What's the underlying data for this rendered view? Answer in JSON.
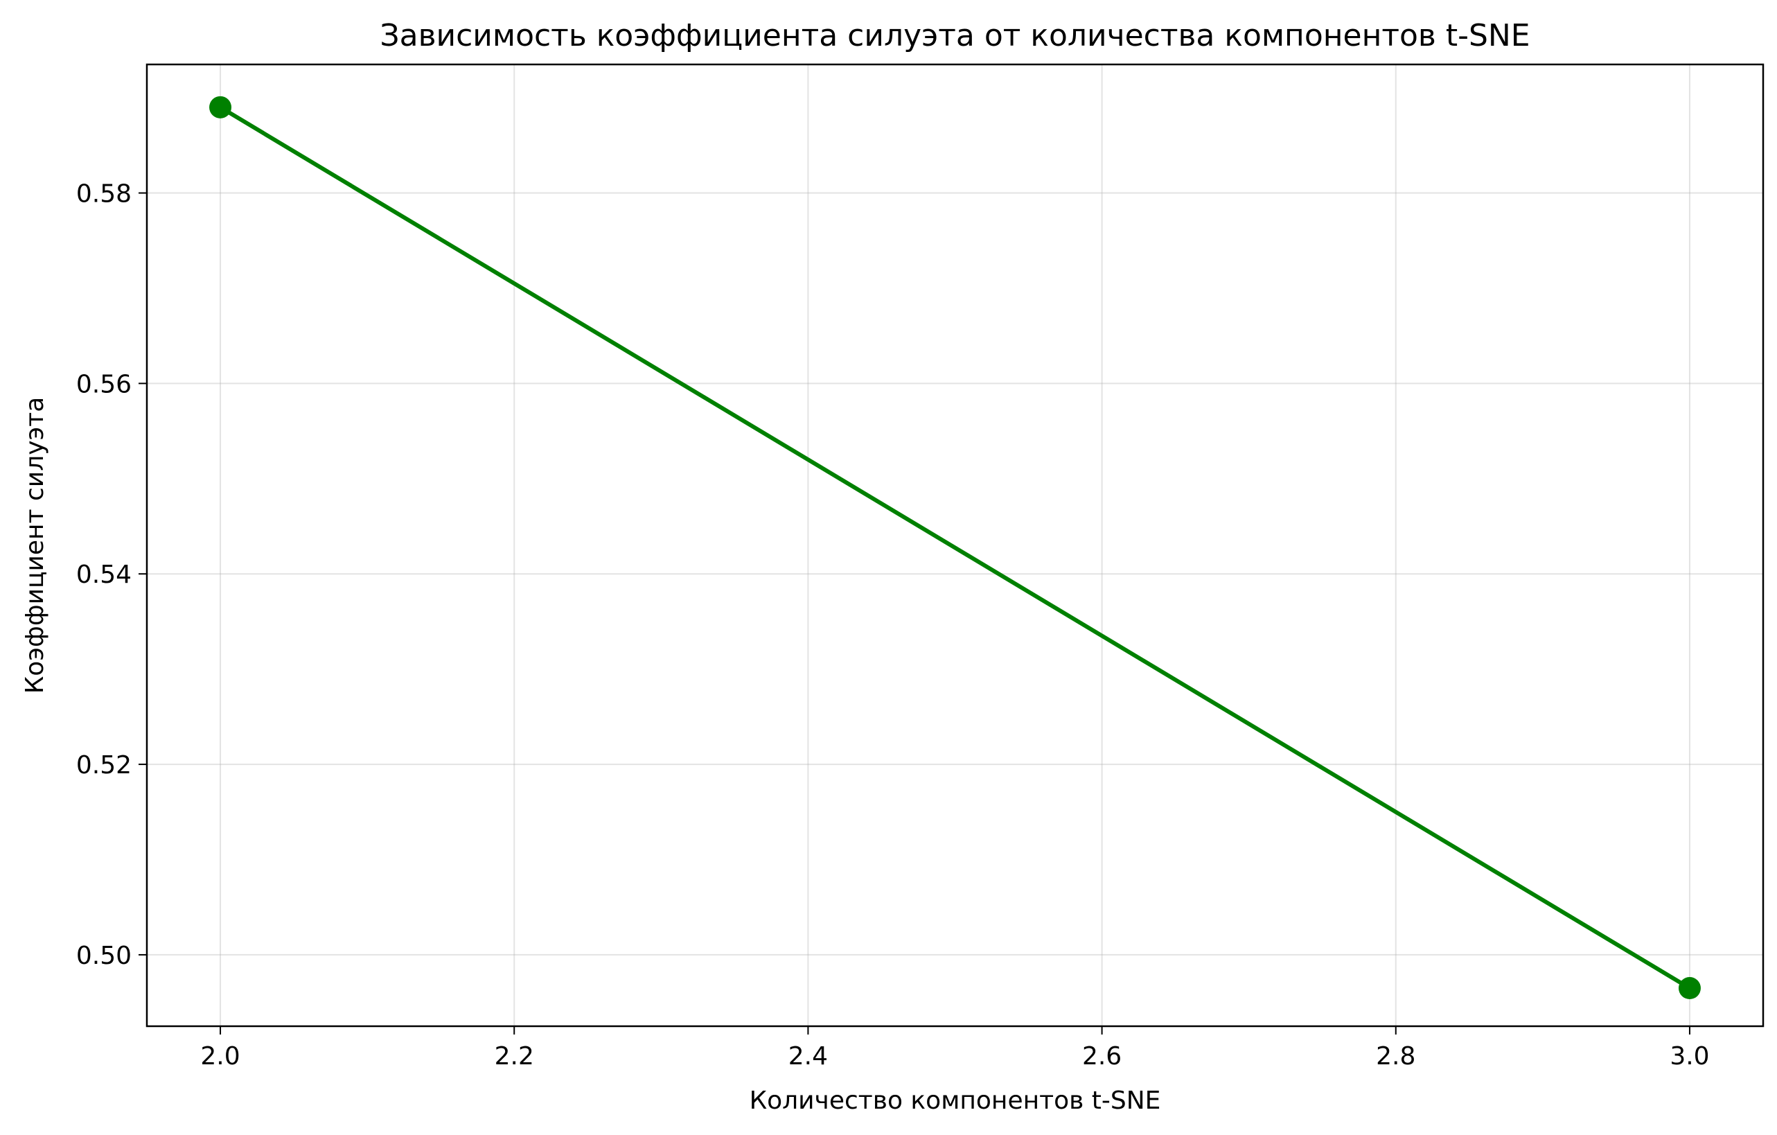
{
  "chart_data": {
    "type": "line",
    "title": "Зависимость коэффициента силуэта от количества компонентов t-SNE",
    "xlabel": "Количество компонентов t-SNE",
    "ylabel": "Коэффициент силуэта",
    "x_ticks": [
      "2.0",
      "2.2",
      "2.4",
      "2.6",
      "2.8",
      "3.0"
    ],
    "y_ticks": [
      "0.50",
      "0.52",
      "0.54",
      "0.56",
      "0.58"
    ],
    "xlim": [
      1.95,
      3.05
    ],
    "ylim": [
      0.4925,
      0.5935
    ],
    "grid": true,
    "series": [
      {
        "color": "#008000",
        "marker": "circle",
        "x": [
          2,
          3
        ],
        "y": [
          0.589,
          0.4965
        ]
      }
    ]
  }
}
